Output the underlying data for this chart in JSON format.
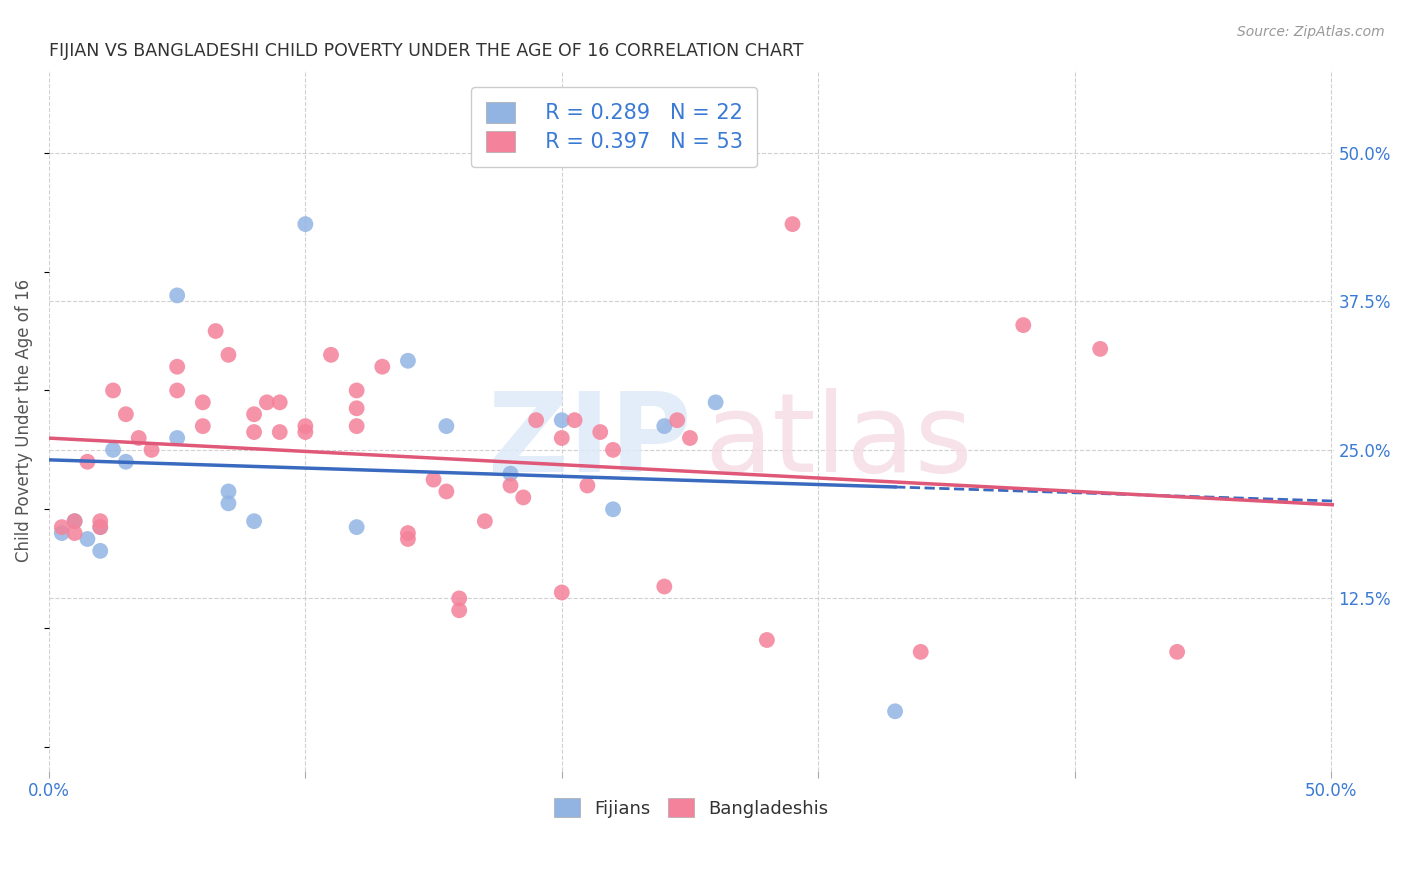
{
  "title": "FIJIAN VS BANGLADESHI CHILD POVERTY UNDER THE AGE OF 16 CORRELATION CHART",
  "source": "Source: ZipAtlas.com",
  "ylabel": "Child Poverty Under the Age of 16",
  "fijian_color": "#92b4e3",
  "bangladeshi_color": "#f4829a",
  "fijian_line_color": "#3a6abf",
  "bangladeshi_line_color": "#e05878",
  "legend_r_fijian": "R = 0.289",
  "legend_n_fijian": "N = 22",
  "legend_r_bangladeshi": "R = 0.397",
  "legend_n_bangladeshi": "N = 53",
  "fijian_x": [
    0.005,
    0.01,
    0.015,
    0.02,
    0.02,
    0.025,
    0.03,
    0.05,
    0.05,
    0.07,
    0.07,
    0.08,
    0.1,
    0.12,
    0.14,
    0.155,
    0.18,
    0.2,
    0.22,
    0.24,
    0.26,
    0.33
  ],
  "fijian_y": [
    0.18,
    0.19,
    0.175,
    0.185,
    0.165,
    0.25,
    0.24,
    0.38,
    0.26,
    0.215,
    0.205,
    0.19,
    0.44,
    0.185,
    0.325,
    0.27,
    0.23,
    0.275,
    0.2,
    0.27,
    0.29,
    0.03
  ],
  "bangladeshi_x": [
    0.005,
    0.01,
    0.01,
    0.015,
    0.02,
    0.02,
    0.025,
    0.03,
    0.035,
    0.04,
    0.05,
    0.05,
    0.06,
    0.06,
    0.065,
    0.07,
    0.08,
    0.08,
    0.085,
    0.09,
    0.09,
    0.1,
    0.1,
    0.11,
    0.12,
    0.12,
    0.12,
    0.13,
    0.14,
    0.14,
    0.15,
    0.155,
    0.16,
    0.16,
    0.17,
    0.18,
    0.185,
    0.19,
    0.2,
    0.2,
    0.205,
    0.21,
    0.215,
    0.22,
    0.24,
    0.245,
    0.25,
    0.28,
    0.29,
    0.34,
    0.38,
    0.41,
    0.44
  ],
  "bangladeshi_y": [
    0.185,
    0.19,
    0.18,
    0.24,
    0.19,
    0.185,
    0.3,
    0.28,
    0.26,
    0.25,
    0.32,
    0.3,
    0.29,
    0.27,
    0.35,
    0.33,
    0.28,
    0.265,
    0.29,
    0.29,
    0.265,
    0.27,
    0.265,
    0.33,
    0.3,
    0.285,
    0.27,
    0.32,
    0.18,
    0.175,
    0.225,
    0.215,
    0.125,
    0.115,
    0.19,
    0.22,
    0.21,
    0.275,
    0.13,
    0.26,
    0.275,
    0.22,
    0.265,
    0.25,
    0.135,
    0.275,
    0.26,
    0.09,
    0.44,
    0.08,
    0.355,
    0.335,
    0.08
  ],
  "background_color": "#ffffff",
  "grid_color": "#d0d0d0",
  "tick_color": "#3a7ad4",
  "yticks_right": [
    0.125,
    0.25,
    0.375,
    0.5
  ],
  "ytick_right_labels": [
    "12.5%",
    "25.0%",
    "37.5%",
    "50.0%"
  ],
  "xticks": [
    0.0,
    0.1,
    0.2,
    0.3,
    0.4,
    0.5
  ],
  "xticklabels": [
    "0.0%",
    "",
    "",
    "",
    "",
    "50.0%"
  ]
}
